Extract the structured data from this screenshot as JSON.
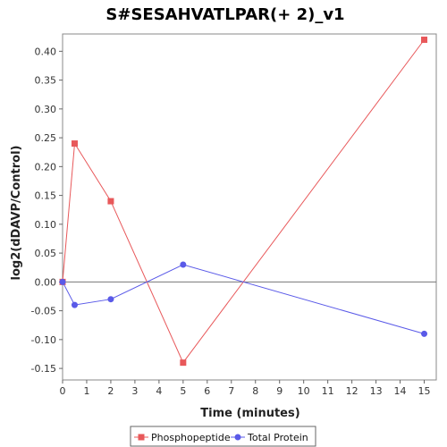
{
  "chart_data": {
    "type": "line",
    "title": "S#SESAHVATLPAR(+ 2)_v1",
    "xlabel": "Time (minutes)",
    "ylabel": "log2(dDAVP/Control)",
    "xlim": [
      0,
      15.5
    ],
    "ylim": [
      -0.17,
      0.43
    ],
    "x_ticks": [
      0,
      1,
      2,
      3,
      4,
      5,
      6,
      7,
      8,
      9,
      10,
      11,
      12,
      13,
      14,
      15
    ],
    "y_ticks": [
      -0.15,
      -0.1,
      -0.05,
      0.0,
      0.05,
      0.1,
      0.15,
      0.2,
      0.25,
      0.3,
      0.35,
      0.4
    ],
    "x_tick_labels": [
      "0",
      "1",
      "2",
      "3",
      "4",
      "5",
      "6",
      "7",
      "8",
      "9",
      "10",
      "11",
      "12",
      "13",
      "14",
      "15"
    ],
    "y_tick_labels": [
      "-0.15",
      "-0.10",
      "-0.05",
      "0.00",
      "0.05",
      "0.10",
      "0.15",
      "0.20",
      "0.25",
      "0.30",
      "0.35",
      "0.40"
    ],
    "zero_line": true,
    "grid": false,
    "legend_position": "bottom",
    "series": [
      {
        "name": "Phosphopeptide",
        "color": "#e8585a",
        "marker": "square",
        "x": [
          0,
          0.5,
          2,
          5,
          15
        ],
        "y": [
          0.0,
          0.24,
          0.14,
          -0.14,
          0.42
        ]
      },
      {
        "name": "Total Protein",
        "color": "#5a5ae8",
        "marker": "circle",
        "x": [
          0,
          0.5,
          2,
          5,
          15
        ],
        "y": [
          0.0,
          -0.04,
          -0.03,
          0.03,
          -0.09
        ]
      }
    ]
  }
}
